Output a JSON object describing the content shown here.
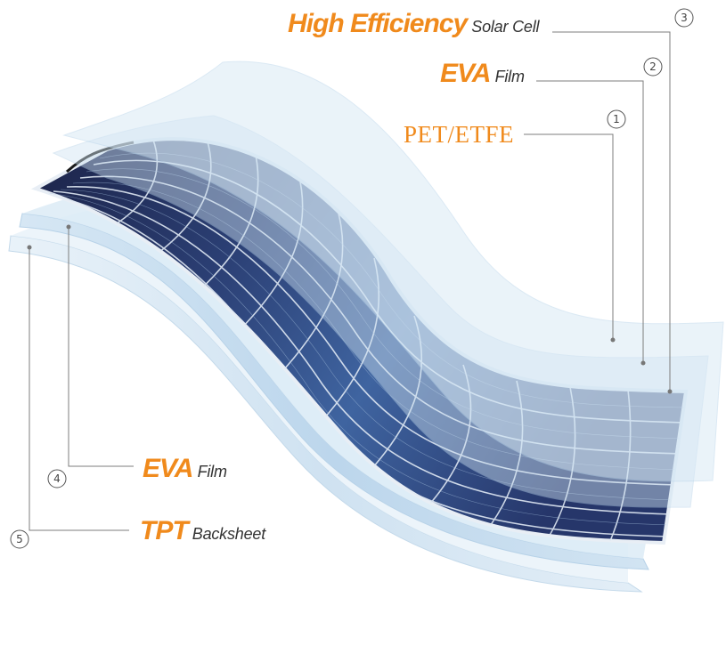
{
  "colors": {
    "accent": "#f08a1c",
    "film_light": "#dcebf5",
    "film_mid": "#c4dcee",
    "cell_dark": "#1f2a55",
    "cell_blue": "#3b5e96",
    "leader": "#7c7c7c"
  },
  "layers": [
    {
      "number": "③",
      "emphasis": "High Efficiency",
      "name": "Solar Cell"
    },
    {
      "number": "②",
      "emphasis": "EVA",
      "name": "Film"
    },
    {
      "number": "①",
      "emphasis": "PET/ETFE",
      "name": ""
    },
    {
      "number": "④",
      "emphasis": "EVA",
      "name": "Film"
    },
    {
      "number": "⑤",
      "emphasis": "TPT",
      "name": "Backsheet"
    }
  ]
}
